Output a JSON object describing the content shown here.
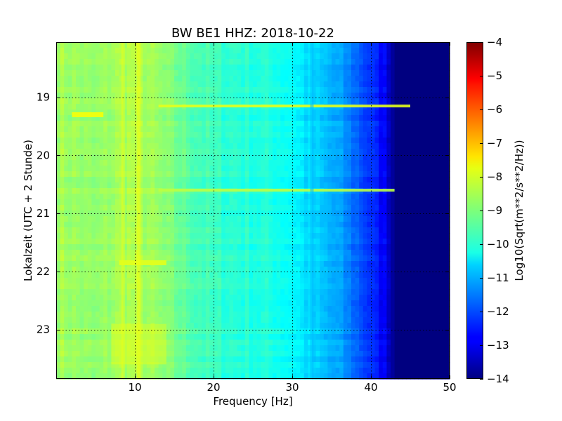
{
  "chart_data": {
    "type": "heatmap",
    "title": "BW BE1 HHZ: 2018-10-22",
    "xlabel": "Frequency [Hz]",
    "ylabel": "Lokalzeit (UTC + 2 Stunde)",
    "xlim": [
      0,
      50
    ],
    "ylim": [
      18.05,
      23.85
    ],
    "y_inverted": true,
    "x_ticks": [
      10,
      20,
      30,
      40,
      50
    ],
    "y_ticks": [
      19,
      20,
      21,
      22,
      23
    ],
    "grid": true,
    "colormap": "jet",
    "colorbar": {
      "label": "Log10(Sqrt(m**2/s**2/Hz))",
      "range": [
        -14,
        -4
      ],
      "ticks": [
        -4,
        -5,
        -6,
        -7,
        -8,
        -9,
        -10,
        -11,
        -12,
        -13,
        -14
      ]
    },
    "level_profile": {
      "frequency_hz": [
        0,
        2,
        5,
        8,
        10,
        12,
        15,
        18,
        20,
        25,
        28,
        30,
        32,
        34,
        36,
        38,
        40,
        42,
        43,
        45,
        50
      ],
      "log10_psd": [
        -8.6,
        -8.7,
        -8.9,
        -8.6,
        -8.5,
        -8.7,
        -9.1,
        -9.5,
        -9.7,
        -9.9,
        -10.0,
        -10.2,
        -10.6,
        -10.9,
        -11.2,
        -11.7,
        -12.3,
        -12.9,
        -14,
        -14,
        -14
      ]
    },
    "features": [
      {
        "type": "horizontal-line",
        "time": 19.15,
        "f_start": 13,
        "f_end": 45,
        "level": -8.0
      },
      {
        "type": "horizontal-line",
        "time": 20.6,
        "f_start": 13,
        "f_end": 43,
        "level": -8.4
      },
      {
        "type": "horizontal-band",
        "time": 19.3,
        "f_start": 2,
        "f_end": 6,
        "level": -7.8
      },
      {
        "type": "horizontal-band",
        "time": 21.85,
        "f_start": 8,
        "f_end": 14,
        "level": -8.0
      },
      {
        "type": "vertical-band",
        "frequency": 8.5,
        "t_start": 18.05,
        "t_end": 23.85,
        "level": -8.0
      },
      {
        "type": "vertical-band",
        "frequency": 10.5,
        "t_start": 18.05,
        "t_end": 23.85,
        "level": -7.9
      },
      {
        "type": "vertical-band",
        "frequency": 32.5,
        "t_start": 18.05,
        "t_end": 23.85,
        "level": -10.9
      },
      {
        "type": "patch",
        "t_start": 22.9,
        "t_end": 23.6,
        "f_start": 7,
        "f_end": 14,
        "level": -8.0
      }
    ]
  }
}
